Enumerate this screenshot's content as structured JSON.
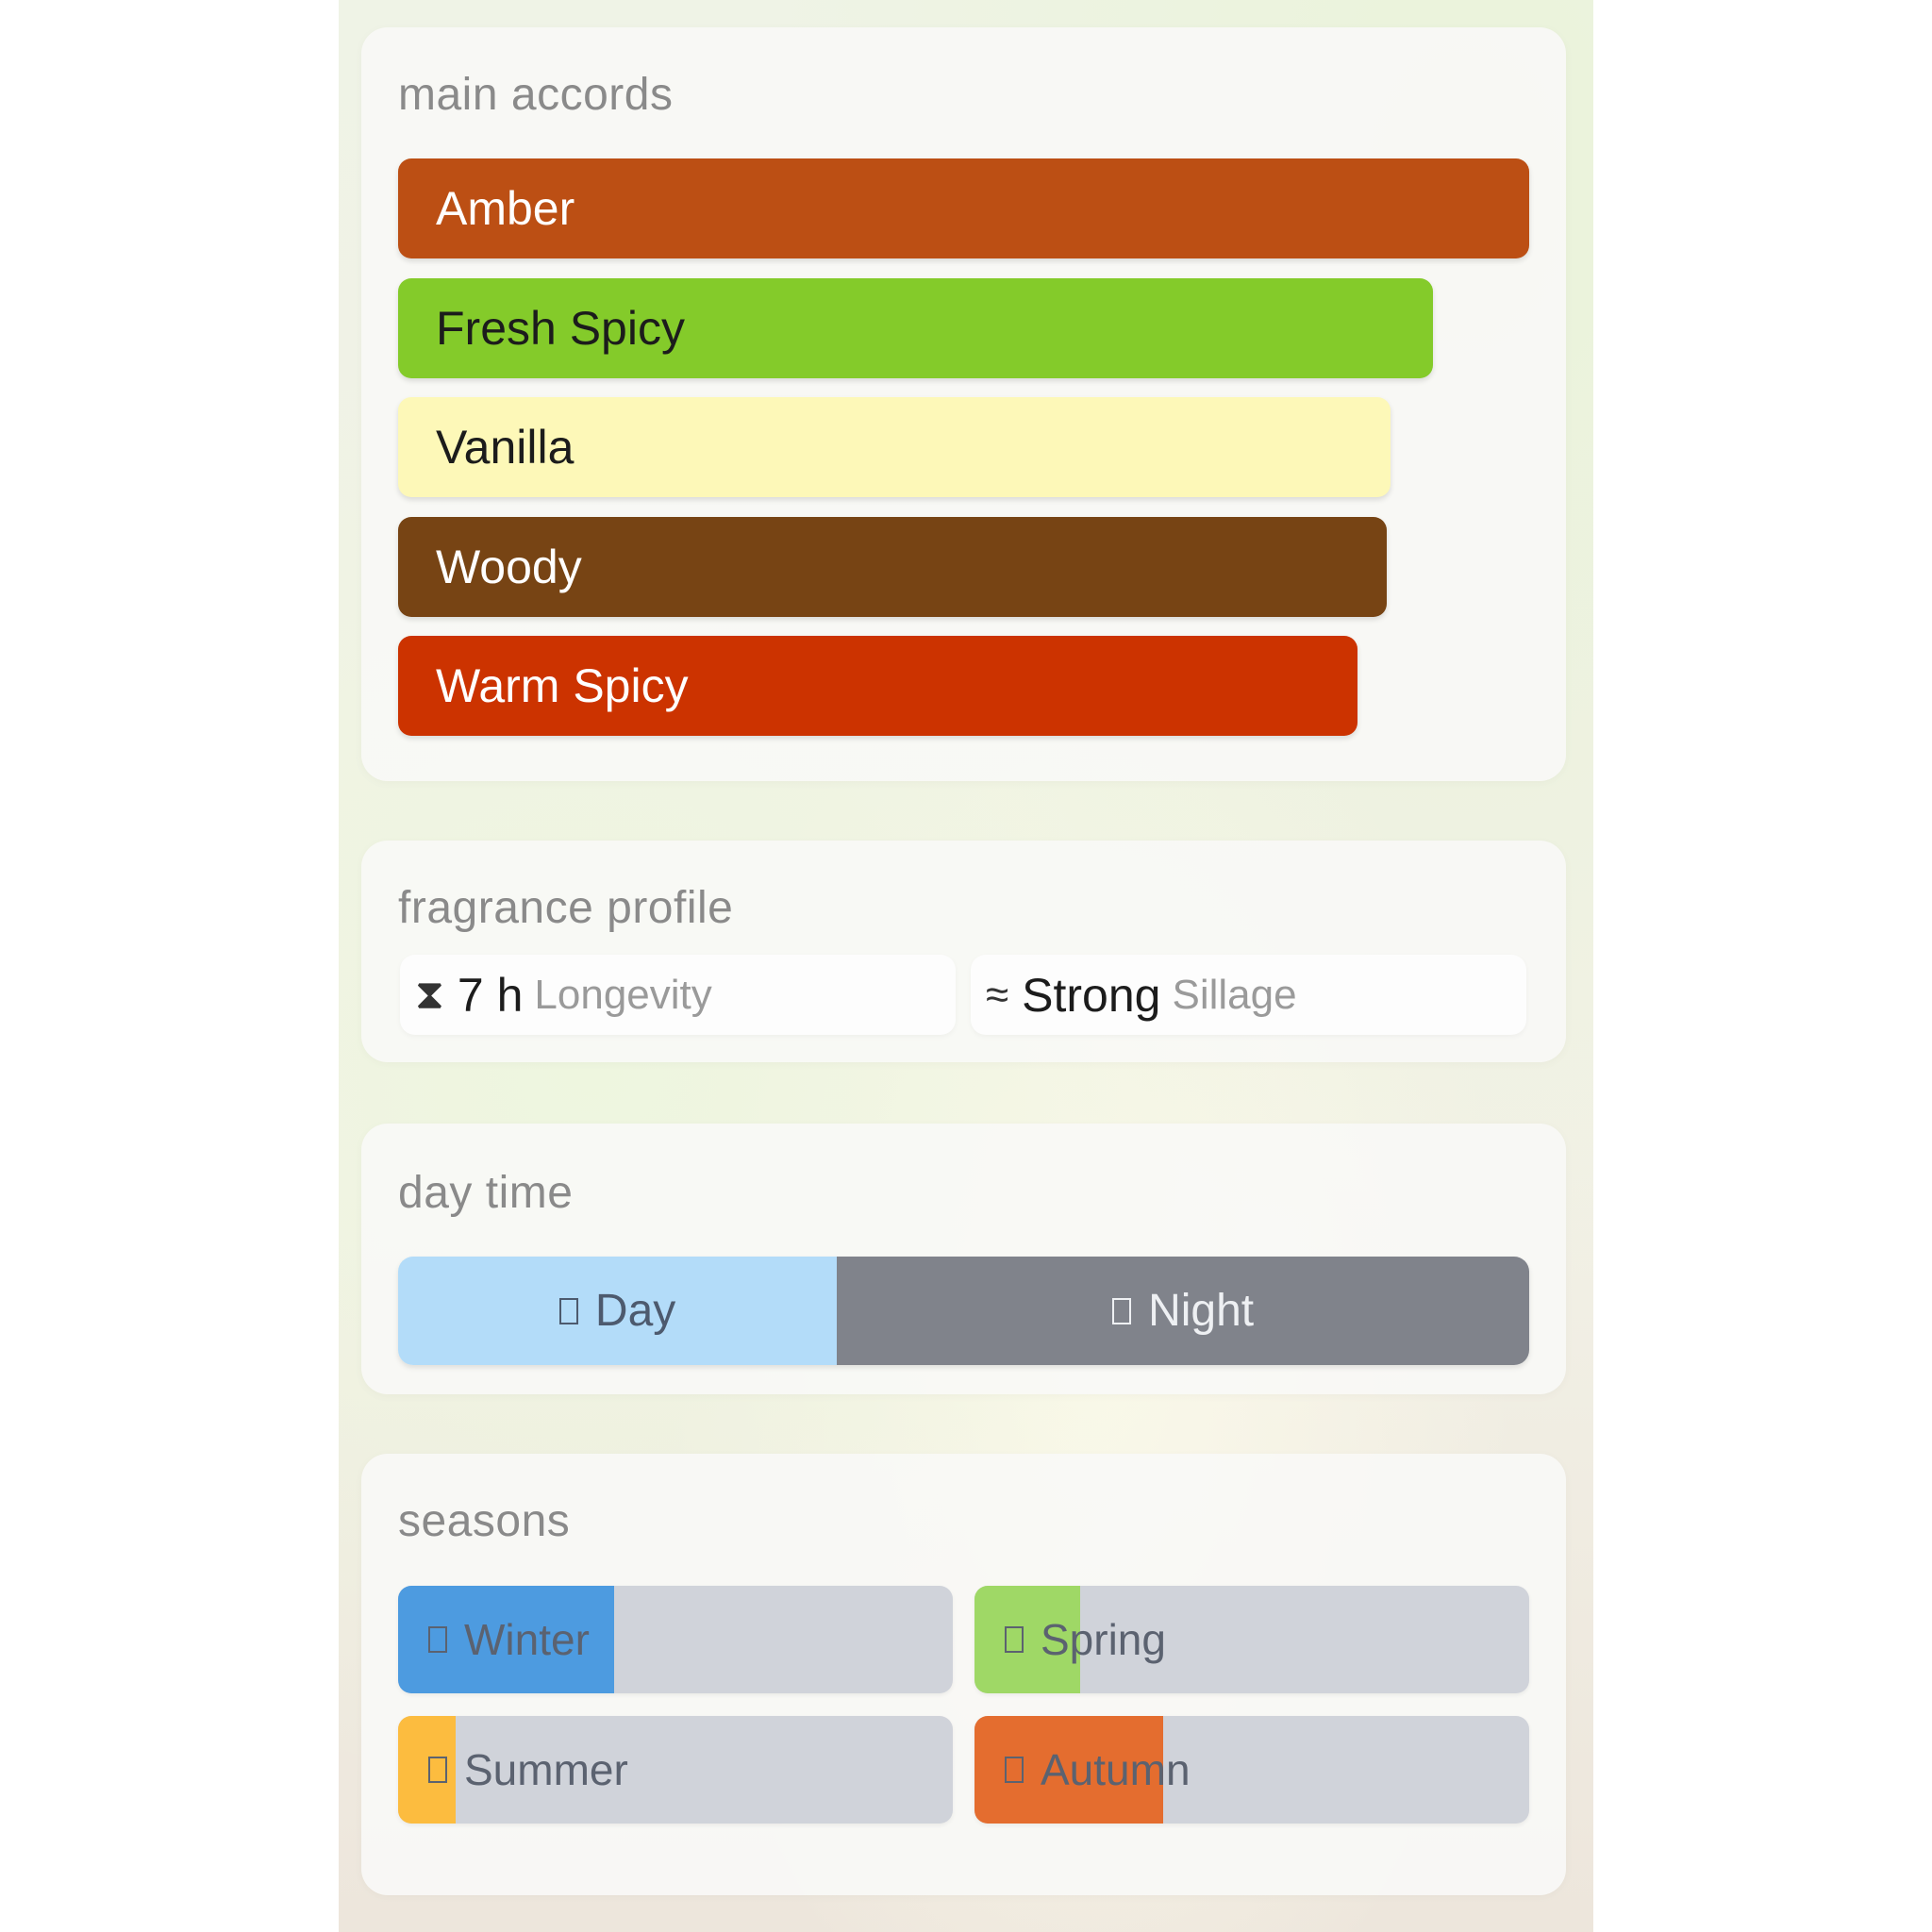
{
  "main_accords": {
    "title": "main accords",
    "accords": [
      {
        "label": "Amber",
        "strength_pct": 100,
        "color": "#bc4f14",
        "text_color": "#ffffff"
      },
      {
        "label": "Fresh Spicy",
        "strength_pct": 91.5,
        "color": "#84cb2a",
        "text_color": "#1c1c1c"
      },
      {
        "label": "Vanilla",
        "strength_pct": 87.7,
        "color": "#fdf8b8",
        "text_color": "#1c1c1c"
      },
      {
        "label": "Woody",
        "strength_pct": 87.4,
        "color": "#774414",
        "text_color": "#ffffff"
      },
      {
        "label": "Warm Spicy",
        "strength_pct": 84.8,
        "color": "#cc3300",
        "text_color": "#ffffff"
      }
    ]
  },
  "fragrance_profile": {
    "title": "fragrance profile",
    "longevity": {
      "icon": "hourglass-icon",
      "glyph": "⧗",
      "value": "7 h",
      "label": "Longevity"
    },
    "sillage": {
      "icon": "waves-icon",
      "glyph": "≈",
      "value": "Strong",
      "label": "Sillage"
    }
  },
  "day_time": {
    "title": "day time",
    "day": {
      "label": "Day",
      "pct": 38.8,
      "color": "#b3dcf9",
      "text_color": "#4d5a6e"
    },
    "night": {
      "label": "Night",
      "pct": 61.2,
      "color": "#80838b",
      "text_color": "#eef0f3"
    }
  },
  "seasons": {
    "title": "seasons",
    "track_color": "#d0d3da",
    "items": [
      {
        "label": "Winter",
        "pct": 39,
        "color": "#4d9be0"
      },
      {
        "label": "Spring",
        "pct": 19,
        "color": "#9fd866"
      },
      {
        "label": "Summer",
        "pct": 10.4,
        "color": "#fcbc3f"
      },
      {
        "label": "Autumn",
        "pct": 34,
        "color": "#e46d2f"
      }
    ]
  }
}
